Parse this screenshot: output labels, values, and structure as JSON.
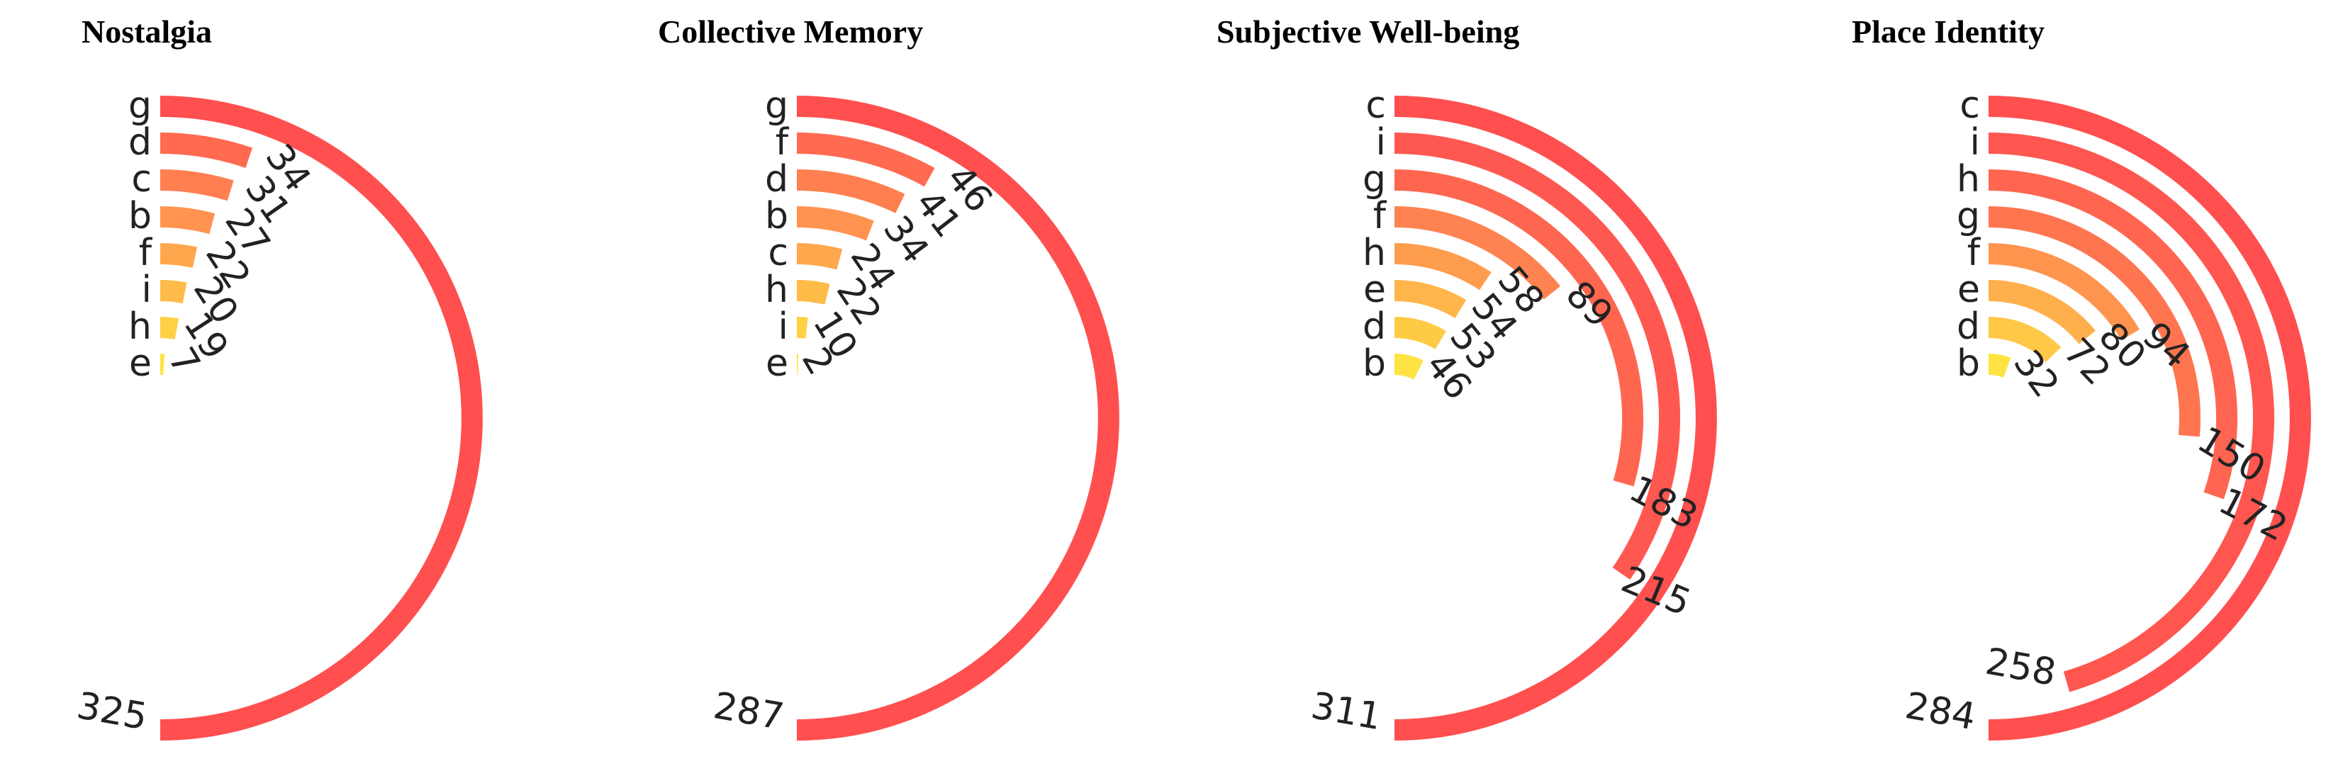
{
  "chart_data": [
    {
      "type": "radial_bar",
      "title": "Nostalgia",
      "categories": [
        "g",
        "d",
        "c",
        "b",
        "f",
        "i",
        "h",
        "e"
      ],
      "values": [
        325,
        34,
        31,
        27,
        22,
        20,
        19,
        7
      ],
      "colors": [
        "#ff4f4f",
        "#ff6a50",
        "#ff7f50",
        "#ff934f",
        "#ffa74c",
        "#ffbb48",
        "#ffd044",
        "#ffe342"
      ]
    },
    {
      "type": "radial_bar",
      "title": "Collective Memory",
      "categories": [
        "g",
        "f",
        "d",
        "b",
        "c",
        "h",
        "i",
        "e"
      ],
      "values": [
        287,
        46,
        41,
        34,
        24,
        22,
        10,
        2
      ],
      "colors": [
        "#ff4f4f",
        "#ff6a50",
        "#ff7f50",
        "#ff934f",
        "#ffa74c",
        "#ffbb48",
        "#ffd044",
        "#ffe342"
      ]
    },
    {
      "type": "radial_bar",
      "title": "Subjective Well-being",
      "categories": [
        "c",
        "i",
        "g",
        "f",
        "h",
        "e",
        "d",
        "b"
      ],
      "values": [
        311,
        215,
        183,
        89,
        58,
        54,
        53,
        46
      ],
      "colors": [
        "#ff4f4f",
        "#ff5850",
        "#ff6650",
        "#ff8350",
        "#ff9d4e",
        "#ffb54a",
        "#ffcb45",
        "#ffe342"
      ]
    },
    {
      "type": "radial_bar",
      "title": "Place Identity",
      "categories": [
        "c",
        "i",
        "h",
        "g",
        "f",
        "e",
        "d",
        "b"
      ],
      "values": [
        284,
        258,
        172,
        150,
        94,
        80,
        72,
        32
      ],
      "colors": [
        "#ff4f4f",
        "#ff5650",
        "#ff6550",
        "#ff7550",
        "#ff944f",
        "#ffaf4b",
        "#ffc846",
        "#ffe342"
      ]
    }
  ]
}
